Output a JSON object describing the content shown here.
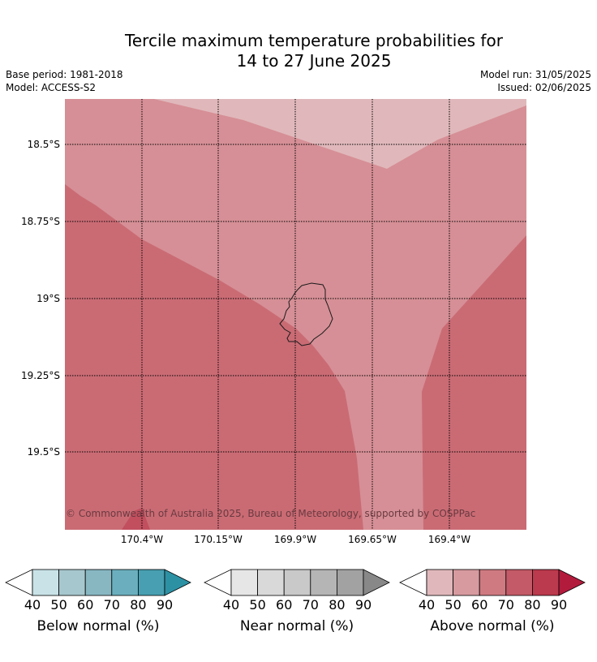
{
  "title_line1": "Tercile maximum temperature probabilities for",
  "title_line2": "14 to 27 June 2025",
  "base_period": "Base period: 1981-2018",
  "model": "Model: ACCESS-S2",
  "model_run": "Model run: 31/05/2025",
  "issued": "Issued: 02/06/2025",
  "copyright": "© Commonwealth of Australia 2025, Bureau of Meteorology, supported by COSPPac",
  "map": {
    "lon_ticks": [
      "170.4°W",
      "170.15°W",
      "169.9°W",
      "169.65°W",
      "169.4°W"
    ],
    "lat_ticks": [
      "18.5°S",
      "18.75°S",
      "19°S",
      "19.25°S",
      "19.5°S"
    ],
    "fill_colors": {
      "above_40_50": "#e0b8bb",
      "above_50_60": "#d68f96",
      "above_60_70": "#ca6b74",
      "above_70_80": "#c14f5e"
    }
  },
  "legends": [
    {
      "title": "Below normal (%)",
      "ticks": [
        "40",
        "50",
        "60",
        "70",
        "80",
        "90"
      ],
      "colors": [
        "#c9e2e7",
        "#a6c7cd",
        "#88b7c2",
        "#6bafbe",
        "#479fb1",
        "#2d91a4"
      ]
    },
    {
      "title": "Near normal (%)",
      "ticks": [
        "40",
        "50",
        "60",
        "70",
        "80",
        "90"
      ],
      "colors": [
        "#e6e6e6",
        "#d9d9d9",
        "#c9c9c9",
        "#b5b5b5",
        "#a2a2a2",
        "#888888"
      ]
    },
    {
      "title": "Above normal (%)",
      "ticks": [
        "40",
        "50",
        "60",
        "70",
        "80",
        "90"
      ],
      "colors": [
        "#e0b8bb",
        "#d69a9f",
        "#cf7a81",
        "#c45a67",
        "#bb3a4d",
        "#b31b3d"
      ]
    }
  ]
}
